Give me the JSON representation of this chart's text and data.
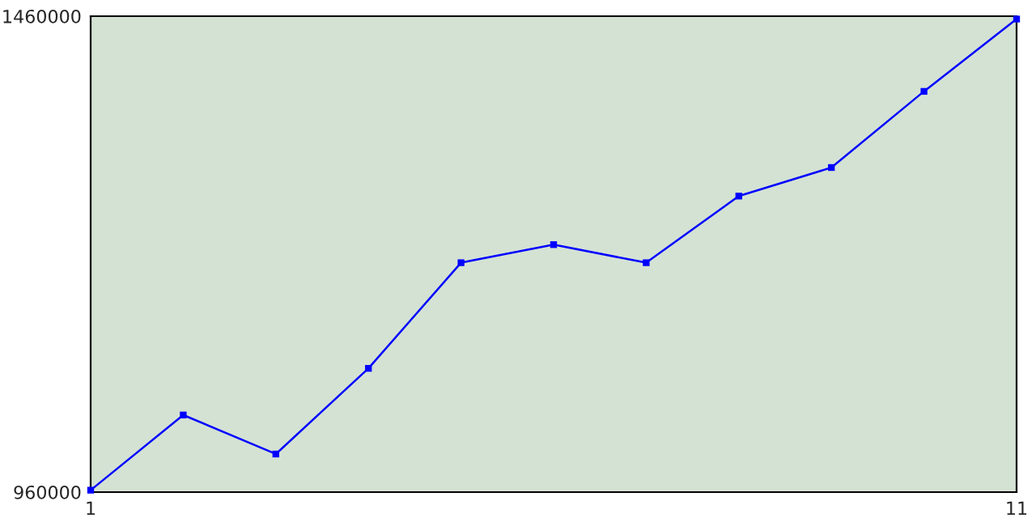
{
  "chart_data": {
    "type": "line",
    "x": [
      1,
      2,
      3,
      4,
      5,
      6,
      7,
      8,
      9,
      10,
      11
    ],
    "series": [
      {
        "color": "#0000ff",
        "values": [
          962000,
          1041000,
          1000000,
          1090000,
          1201000,
          1220000,
          1201000,
          1271000,
          1301000,
          1381000,
          1457000
        ]
      }
    ],
    "xlim": [
      1,
      11
    ],
    "xticks": [
      1,
      11
    ],
    "ylim": [
      960000,
      1460000
    ],
    "yticks": [
      960000,
      1460000
    ],
    "legend": false,
    "marker": "square",
    "line_style": "solid"
  }
}
